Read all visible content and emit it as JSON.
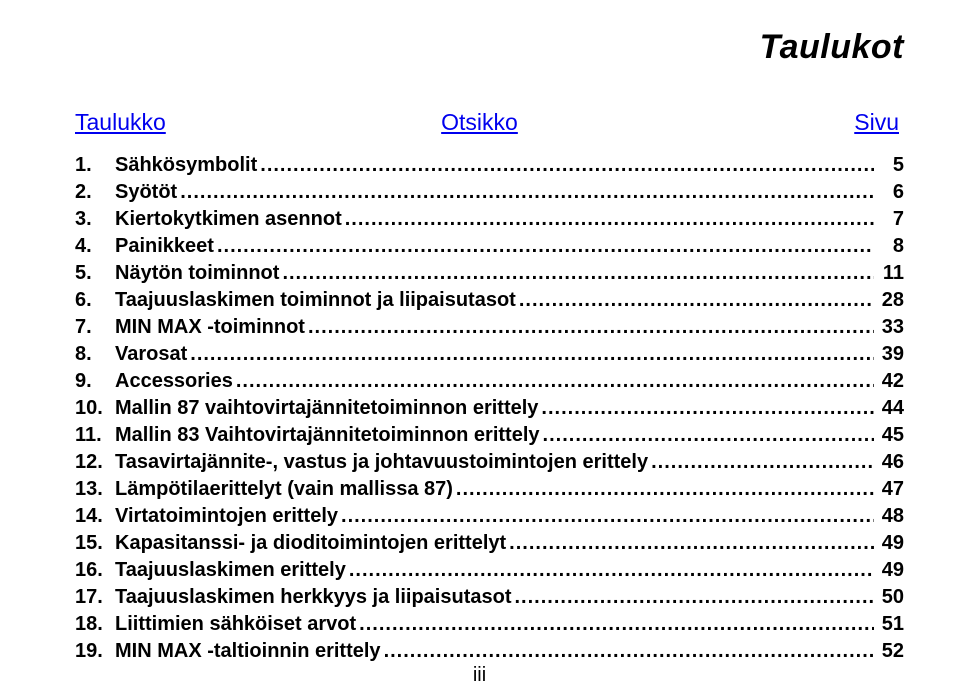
{
  "page": {
    "main_title": "Taulukot",
    "footer": "iii",
    "background_color": "#ffffff",
    "text_color": "#000000",
    "link_color": "#0000ee",
    "font_family": "Arial",
    "title_fontsize": 34,
    "header_fontsize": 23,
    "row_fontsize": 20
  },
  "columns": {
    "left": "Taulukko",
    "center": "Otsikko",
    "right": "Sivu"
  },
  "toc": [
    {
      "num": "1.",
      "text": "Sähkösymbolit",
      "page": "5"
    },
    {
      "num": "2.",
      "text": "Syötöt",
      "page": "6"
    },
    {
      "num": "3.",
      "text": "Kiertokytkimen asennot",
      "page": "7"
    },
    {
      "num": "4.",
      "text": "Painikkeet",
      "page": "8"
    },
    {
      "num": "5.",
      "text": "Näytön toiminnot",
      "page": "11"
    },
    {
      "num": "6.",
      "text": "Taajuuslaskimen toiminnot ja liipaisutasot",
      "page": "28"
    },
    {
      "num": "7.",
      "text": "MIN MAX -toiminnot",
      "page": "33"
    },
    {
      "num": "8.",
      "text": "Varosat",
      "page": "39"
    },
    {
      "num": "9.",
      "text": "Accessories",
      "page": "42"
    },
    {
      "num": "10.",
      "text": "Mallin 87 vaihtovirtajännitetoiminnon erittely",
      "page": "44"
    },
    {
      "num": "11.",
      "text": "Mallin 83 Vaihtovirtajännitetoiminnon erittely",
      "page": "45"
    },
    {
      "num": "12.",
      "text": "Tasavirtajännite-, vastus ja johtavuustoimintojen erittely",
      "page": "46"
    },
    {
      "num": "13.",
      "text": "Lämpötilaerittelyt (vain mallissa 87)",
      "page": "47"
    },
    {
      "num": "14.",
      "text": "Virtatoimintojen erittely",
      "page": "48"
    },
    {
      "num": "15.",
      "text": "Kapasitanssi- ja dioditoimintojen erittelyt",
      "page": "49"
    },
    {
      "num": "16.",
      "text": "Taajuuslaskimen erittely",
      "page": "49"
    },
    {
      "num": "17.",
      "text": "Taajuuslaskimen herkkyys ja liipaisutasot",
      "page": "50"
    },
    {
      "num": "18.",
      "text": "Liittimien sähköiset arvot",
      "page": "51"
    },
    {
      "num": "19.",
      "text": "MIN MAX -taltioinnin erittely",
      "page": "52"
    }
  ]
}
